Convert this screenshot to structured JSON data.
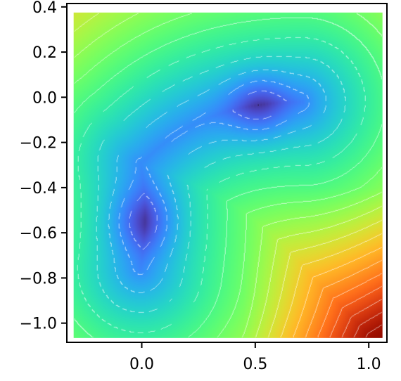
{
  "chart_data": {
    "type": "heatmap",
    "title": "",
    "xlabel": "",
    "ylabel": "",
    "xlim": [
      -0.33,
      1.08
    ],
    "ylim": [
      -1.085,
      0.415
    ],
    "x_ticks": [
      0.0,
      0.5,
      1.0
    ],
    "x_tick_labels": [
      "0.0",
      "0.5",
      "1.0"
    ],
    "y_ticks": [
      0.4,
      0.2,
      0.0,
      -0.2,
      -0.4,
      -0.6,
      -0.8,
      -1.0
    ],
    "y_tick_labels": [
      "0.4",
      "0.2",
      "0.0",
      "−0.2",
      "−0.4",
      "−0.6",
      "−0.8",
      "−1.0"
    ],
    "image_extent": {
      "x": [
        -0.3,
        1.06
      ],
      "y": [
        -1.065,
        0.375
      ]
    },
    "colormap": "turbo",
    "contour_style": {
      "low_levels": "dashed",
      "high_levels": "solid",
      "color": "#ffffff"
    },
    "surface": {
      "description_role": "valley minima",
      "minima": [
        {
          "x": 0.0,
          "y": -0.55
        },
        {
          "x": 0.55,
          "y": -0.03
        }
      ],
      "highest_corner": {
        "x": 1.06,
        "y": -1.065
      }
    },
    "grid": false,
    "legend": "none"
  }
}
